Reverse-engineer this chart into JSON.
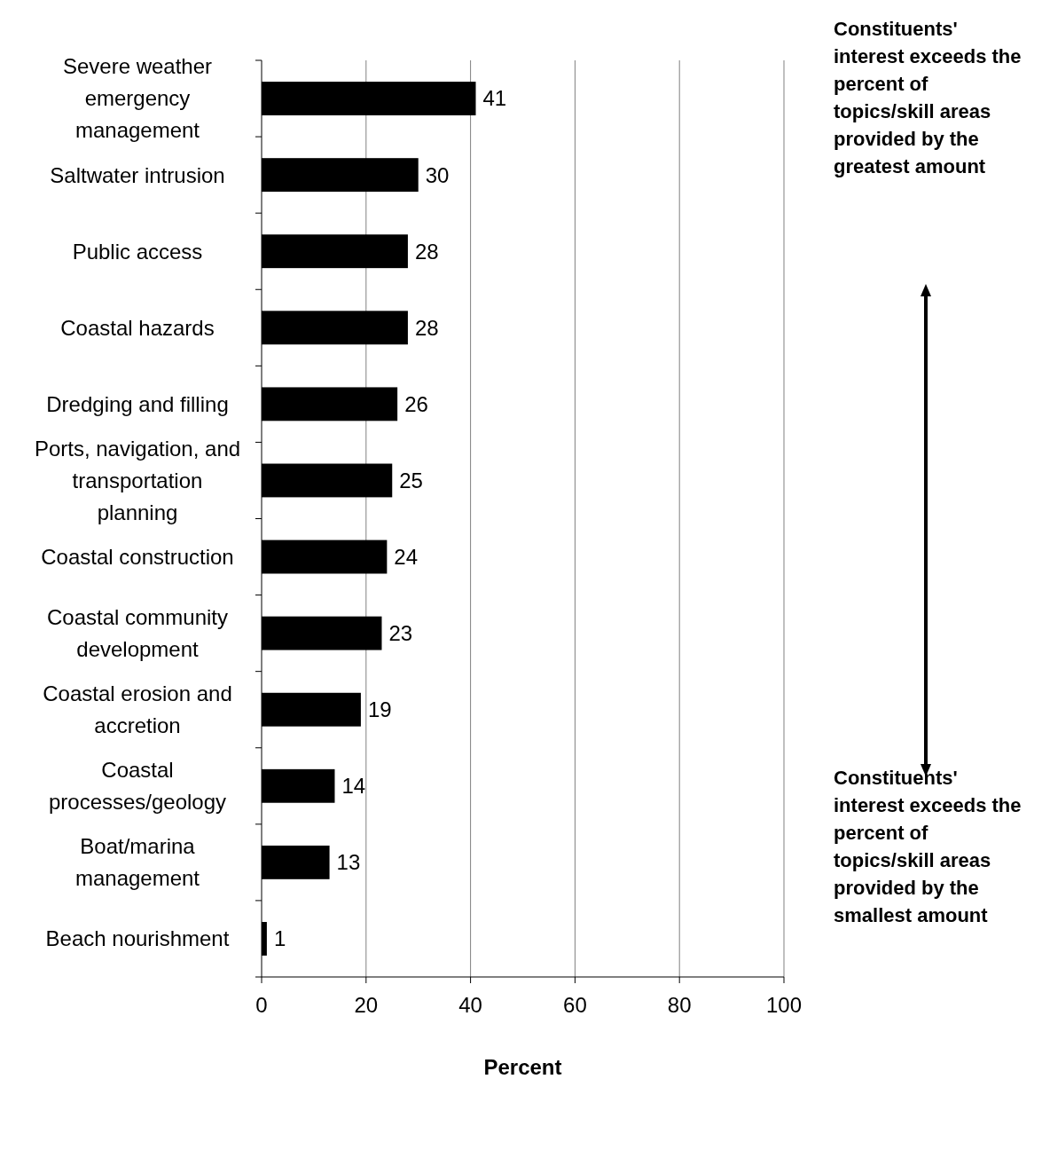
{
  "chart_data": {
    "type": "bar",
    "orientation": "horizontal",
    "xlabel": "Percent",
    "categories": [
      "Severe weather emergency management",
      "Saltwater intrusion",
      "Public access",
      "Coastal hazards",
      "Dredging and filling",
      "Ports, navigation, and transportation planning",
      "Coastal construction",
      "Coastal community development",
      "Coastal erosion and accretion",
      "Coastal processes/geology",
      "Boat/marina management",
      "Beach nourishment"
    ],
    "values": [
      41,
      30,
      28,
      28,
      26,
      25,
      24,
      23,
      19,
      14,
      13,
      1
    ],
    "color": "#000000",
    "data_labels": true,
    "xlim": [
      0,
      100
    ],
    "xticks": [
      0,
      20,
      40,
      60,
      80,
      100
    ],
    "grid": "x",
    "annotations": [
      "Constituents' interest exceeds the percent of topics/skill areas provided by the greatest amount",
      "Constituents' interest exceeds the percent of topics/skill areas provided by the smallest amount"
    ]
  }
}
